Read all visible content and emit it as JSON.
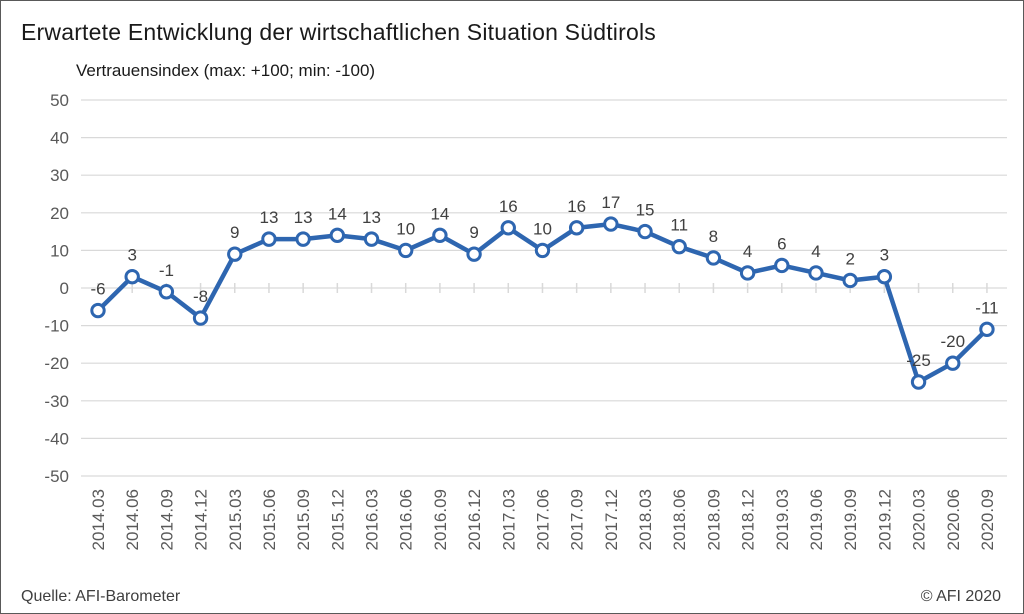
{
  "title": "Erwartete Entwicklung der wirtschaftlichen Situation Südtirols",
  "subtitle": "Vertrauensindex (max: +100; min: -100)",
  "footer": {
    "source": "Quelle: AFI-Barometer",
    "copyright": "© AFI 2020"
  },
  "colors": {
    "line": "#2E66B0",
    "marker_fill": "#FFFFFF",
    "grid": "#D9D9D9",
    "tick": "#D9D9D9",
    "axis_text": "#595959",
    "data_label": "#404040"
  },
  "chart_data": {
    "type": "line",
    "title": "Erwartete Entwicklung der wirtschaftlichen Situation Südtirols",
    "subtitle": "Vertrauensindex (max: +100; min: -100)",
    "categories": [
      "2014.03",
      "2014.06",
      "2014.09",
      "2014.12",
      "2015.03",
      "2015.06",
      "2015.09",
      "2015.12",
      "2016.03",
      "2016.06",
      "2016.09",
      "2016.12",
      "2017.03",
      "2017.06",
      "2017.09",
      "2017.12",
      "2018.03",
      "2018.06",
      "2018.09",
      "2018.12",
      "2019.03",
      "2019.06",
      "2019.09",
      "2019.12",
      "2020.03",
      "2020.06",
      "2020.09"
    ],
    "values": [
      -6,
      3,
      -1,
      -8,
      9,
      13,
      13,
      14,
      13,
      10,
      14,
      9,
      16,
      10,
      16,
      17,
      15,
      11,
      8,
      4,
      6,
      4,
      2,
      3,
      -25,
      -20,
      -11
    ],
    "series": [
      {
        "name": "Vertrauensindex",
        "values": [
          -6,
          3,
          -1,
          -8,
          9,
          13,
          13,
          14,
          13,
          10,
          14,
          9,
          16,
          10,
          16,
          17,
          15,
          11,
          8,
          4,
          6,
          4,
          2,
          3,
          -25,
          -20,
          -11
        ]
      }
    ],
    "xlabel": "",
    "ylabel": "",
    "ylim": [
      -50,
      50
    ],
    "yticks": [
      50,
      40,
      30,
      20,
      10,
      0,
      -10,
      -20,
      -30,
      -40,
      -50
    ],
    "grid": true,
    "legend": "none",
    "data_labels": "above",
    "marker": "circle-white-fill"
  }
}
